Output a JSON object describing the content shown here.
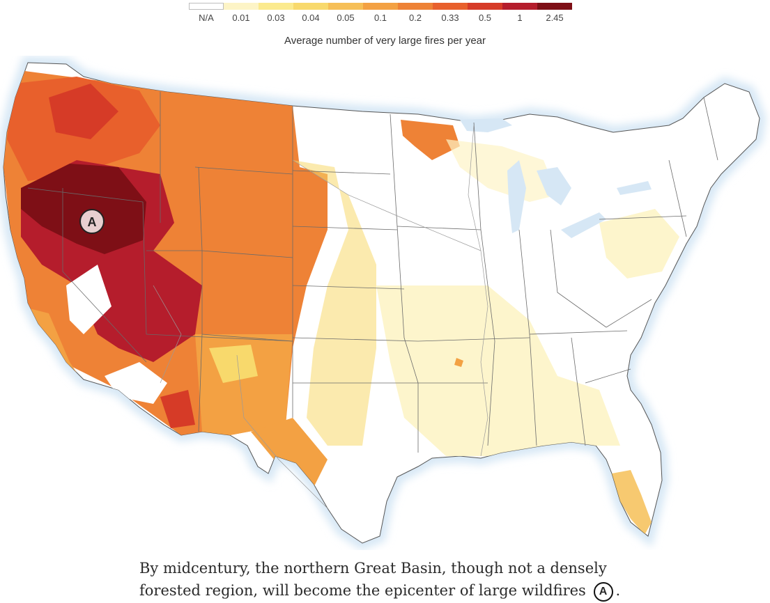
{
  "legend": {
    "title": "Average number of very large fires per year",
    "na_label": "N/A",
    "ticks": [
      "0.01",
      "0.03",
      "0.04",
      "0.05",
      "0.1",
      "0.2",
      "0.33",
      "0.5",
      "1",
      "2.45"
    ],
    "colors": [
      "#fdf4c6",
      "#fbea8e",
      "#f8d96c",
      "#f6bf57",
      "#f3a143",
      "#ee8236",
      "#e8602c",
      "#d63b27",
      "#b51d2c",
      "#7e0f16"
    ]
  },
  "map": {
    "marker_label": "A",
    "region_fills": {
      "land": "#ffffff",
      "water": "#d6e7f5",
      "northwest": "#e8602c",
      "great_basin_core": "#7e0f16",
      "great_basin_ring": "#b51d2c",
      "rockies": "#ee8236",
      "southwest": "#f3a143",
      "plains_edge": "#f8d96c",
      "east_speckle": "#fdf4c6",
      "florida": "#f6bf57"
    }
  },
  "caption": {
    "text_before": "By midcentury, the northern Great Basin, though not a densely forested region, will become the epicenter of large wildfires",
    "marker": "A",
    "text_after": "."
  }
}
